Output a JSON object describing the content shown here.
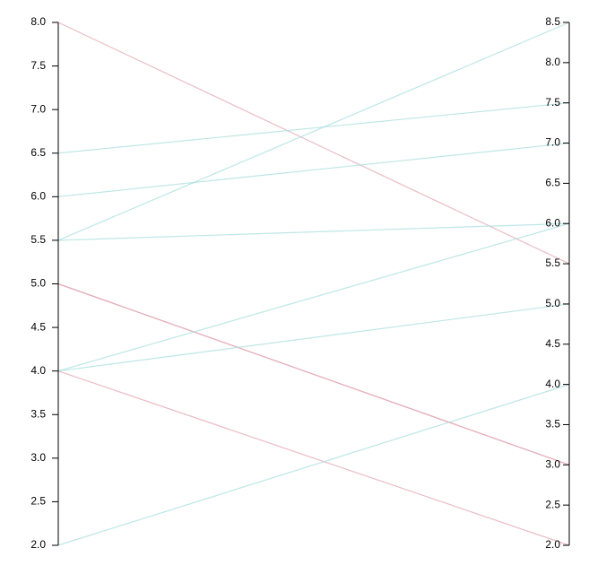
{
  "chart_data": {
    "type": "slope",
    "ylim": [
      2,
      8
    ],
    "yticks": [
      {
        "value": 2,
        "label": "2.0"
      },
      {
        "value": 2.5,
        "label": "2.5"
      },
      {
        "value": 3,
        "label": "3.0"
      },
      {
        "value": 3.5,
        "label": "3.5"
      },
      {
        "value": 4,
        "label": "4.0"
      },
      {
        "value": 4.5,
        "label": "4.5"
      },
      {
        "value": 5,
        "label": "5.0"
      },
      {
        "value": 5.5,
        "label": "5.5"
      },
      {
        "value": 6,
        "label": "6.0"
      },
      {
        "value": 6.5,
        "label": "6.5"
      },
      {
        "value": 7,
        "label": "7.0"
      },
      {
        "value": 7.5,
        "label": "7.5"
      },
      {
        "value": 8,
        "label": "8.0"
      }
    ],
    "y2lim": [
      2,
      8.5
    ],
    "y2ticks": [
      {
        "value": 2,
        "label": "2.0"
      },
      {
        "value": 2.5,
        "label": "2.5"
      },
      {
        "value": 3,
        "label": "3.0"
      },
      {
        "value": 3.5,
        "label": "3.5"
      },
      {
        "value": 4,
        "label": "4.0"
      },
      {
        "value": 4.5,
        "label": "4.5"
      },
      {
        "value": 5,
        "label": "5.0"
      },
      {
        "value": 5.5,
        "label": "5.5"
      },
      {
        "value": 6,
        "label": "6.0"
      },
      {
        "value": 6.5,
        "label": "6.5"
      },
      {
        "value": 7,
        "label": "7.0"
      },
      {
        "value": 7.5,
        "label": "7.5"
      },
      {
        "value": 8,
        "label": "8.0"
      },
      {
        "value": 8.5,
        "label": "8.5"
      }
    ],
    "series": [
      {
        "values": [
          8,
          5.5
        ],
        "color": "#e3a7b1"
      },
      {
        "values": [
          6.5,
          7.5
        ],
        "color": "#a8dede"
      },
      {
        "values": [
          6,
          7
        ],
        "color": "#a8dede"
      },
      {
        "values": [
          5.5,
          8.5
        ],
        "color": "#a8dede"
      },
      {
        "values": [
          5.5,
          6
        ],
        "color": "#a8dede"
      },
      {
        "values": [
          5,
          3
        ],
        "color": "#e3a7b1"
      },
      {
        "values": [
          5,
          3
        ],
        "color": "#e3a7b1"
      },
      {
        "values": [
          4,
          6
        ],
        "color": "#a8dede"
      },
      {
        "values": [
          4,
          5
        ],
        "color": "#a8dede"
      },
      {
        "values": [
          4,
          2
        ],
        "color": "#e3a7b1"
      },
      {
        "values": [
          2,
          4
        ],
        "color": "#a8dede"
      }
    ]
  }
}
